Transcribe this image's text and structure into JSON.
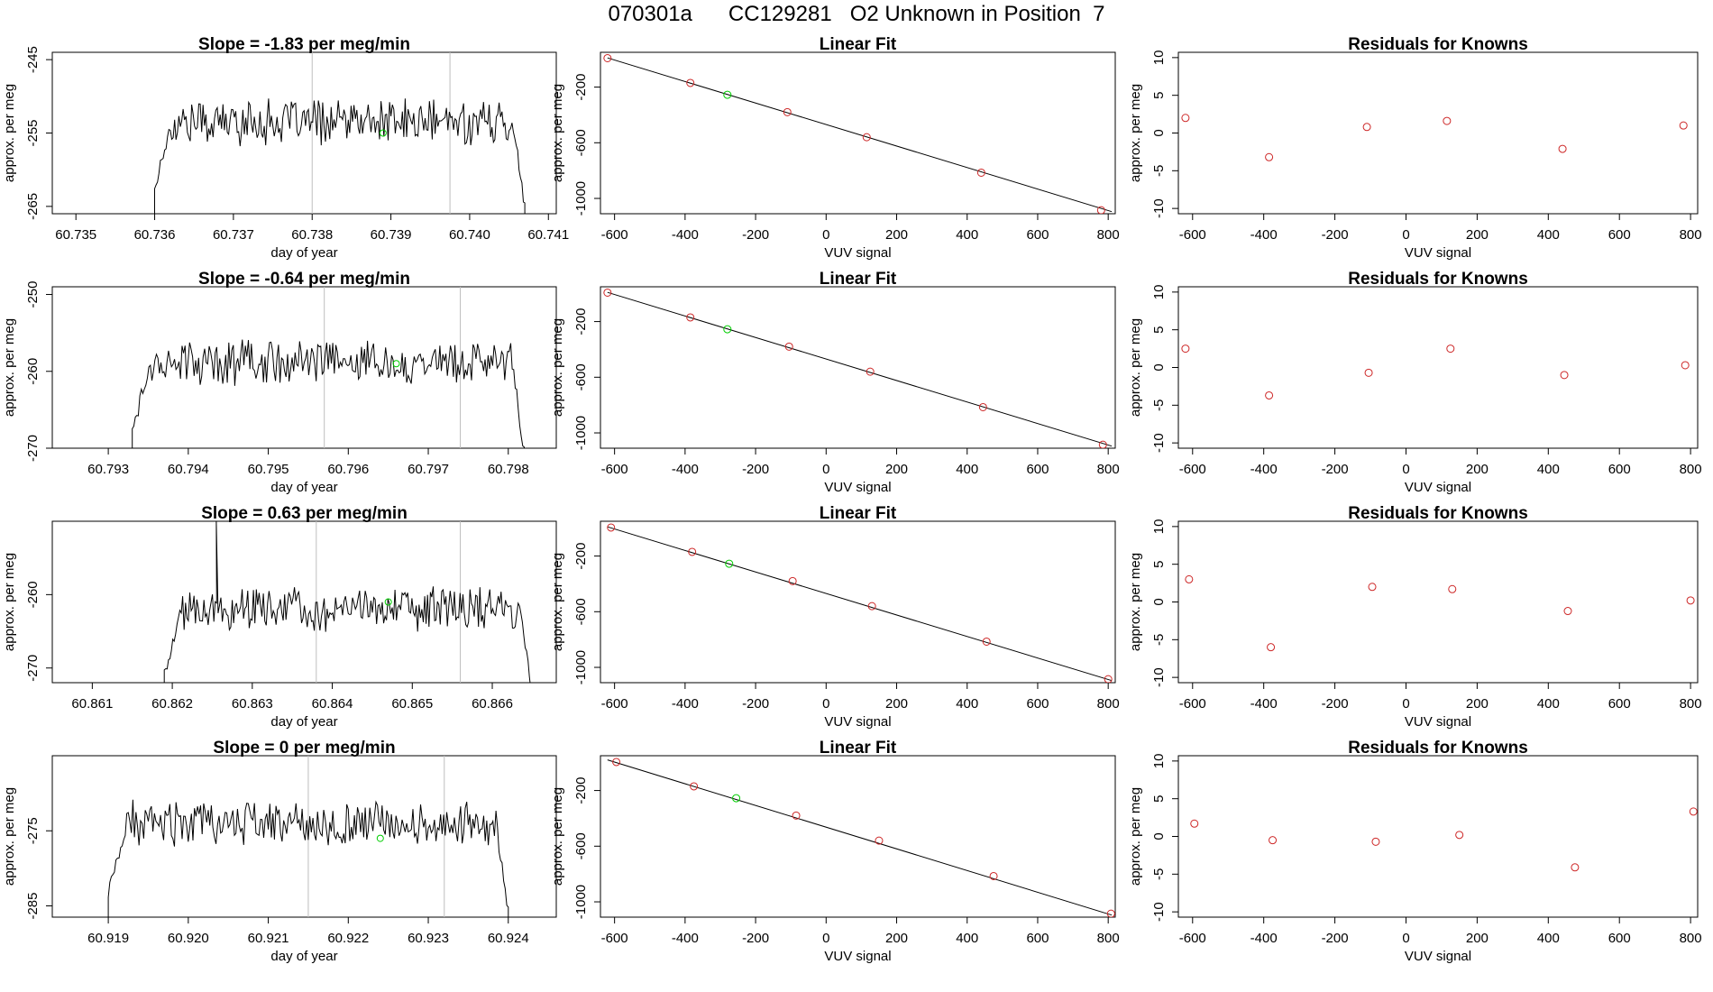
{
  "figure": {
    "run_id": "070301a",
    "cylinder": "CC129281",
    "description": "O2 Unknown in Position  7"
  },
  "colors": {
    "trace": "#000000",
    "known_point": "#cd2626",
    "unknown_point": "#00cd00",
    "marker_line": "#bebebe",
    "axis": "#000000"
  },
  "chart_data": [
    {
      "row": 1,
      "timeseries": {
        "type": "line",
        "title": "Slope =  -1.83  per meg/min",
        "xlabel": "day of year",
        "ylabel": "approx. per meg",
        "xlim": [
          60.7347,
          60.7411
        ],
        "ylim": [
          -266,
          -244
        ],
        "xticks": [
          "60.735",
          "60.736",
          "60.737",
          "60.738",
          "60.739",
          "60.740",
          "60.741"
        ],
        "xtick_values": [
          60.735,
          60.736,
          60.737,
          60.738,
          60.739,
          60.74,
          60.741
        ],
        "yticks": [
          "-245",
          "-255",
          "-265"
        ],
        "ytick_values": [
          -245,
          -255,
          -265
        ],
        "vlines": [
          60.738,
          60.73975
        ],
        "x_start": 60.736,
        "x_end": 60.7407,
        "level": -253.5,
        "amplitude": 2.5,
        "unknown_mean": {
          "x": 60.7389,
          "y": -255
        }
      },
      "fit": {
        "type": "scatter",
        "title": "Linear Fit",
        "xlabel": "VUV signal",
        "ylabel": "approx. per meg",
        "xlim": [
          -640,
          820
        ],
        "ylim": [
          -1110,
          50
        ],
        "xticks": [
          "-600",
          "-400",
          "-200",
          "0",
          "200",
          "400",
          "600",
          "800"
        ],
        "xtick_values": [
          -600,
          -400,
          -200,
          0,
          200,
          400,
          600,
          800
        ],
        "yticks": [
          "-200",
          "-600",
          "-1000"
        ],
        "ytick_values": [
          -200,
          -600,
          -1000
        ],
        "line": {
          "x": [
            -620,
            810
          ],
          "y": [
            10,
            -1095
          ]
        },
        "knowns": {
          "x": [
            -620,
            -385,
            -110,
            115,
            440,
            780
          ],
          "y": [
            8,
            -170,
            -380,
            -560,
            -815,
            -1085
          ]
        },
        "unknown": {
          "x": -280,
          "y": -255
        }
      },
      "residuals": {
        "type": "scatter",
        "title": "Residuals for Knowns",
        "xlabel": "VUV signal",
        "ylabel": "approx. per meg",
        "xlim": [
          -640,
          820
        ],
        "ylim": [
          -10.7,
          10.7
        ],
        "xticks": [
          "-600",
          "-400",
          "-200",
          "0",
          "200",
          "400",
          "600",
          "800"
        ],
        "xtick_values": [
          -600,
          -400,
          -200,
          0,
          200,
          400,
          600,
          800
        ],
        "yticks": [
          "10",
          "5",
          "0",
          "-5",
          "-10"
        ],
        "ytick_values": [
          10,
          5,
          0,
          -5,
          -10
        ],
        "points": {
          "x": [
            -620,
            -385,
            -110,
            115,
            440,
            780
          ],
          "y": [
            2.0,
            -3.2,
            0.8,
            1.6,
            -2.1,
            1.0
          ]
        }
      }
    },
    {
      "row": 2,
      "timeseries": {
        "type": "line",
        "title": "Slope =  -0.64  per meg/min",
        "xlabel": "day of year",
        "ylabel": "approx. per meg",
        "xlim": [
          60.7923,
          60.7986
        ],
        "ylim": [
          -270,
          -249
        ],
        "xticks": [
          "60.793",
          "60.794",
          "60.795",
          "60.796",
          "60.797",
          "60.798"
        ],
        "xtick_values": [
          60.793,
          60.794,
          60.795,
          60.796,
          60.797,
          60.798
        ],
        "yticks": [
          "-250",
          "-260",
          "-270"
        ],
        "ytick_values": [
          -250,
          -260,
          -270
        ],
        "vlines": [
          60.7957,
          60.7974
        ],
        "x_start": 60.7933,
        "x_end": 60.7982,
        "level": -258.8,
        "amplitude": 2.3,
        "unknown_mean": {
          "x": 60.7966,
          "y": -259
        }
      },
      "fit": {
        "type": "scatter",
        "title": "Linear Fit",
        "xlabel": "VUV signal",
        "ylabel": "approx. per meg",
        "xlim": [
          -640,
          820
        ],
        "ylim": [
          -1110,
          50
        ],
        "xticks": [
          "-600",
          "-400",
          "-200",
          "0",
          "200",
          "400",
          "600",
          "800"
        ],
        "xtick_values": [
          -600,
          -400,
          -200,
          0,
          200,
          400,
          600,
          800
        ],
        "yticks": [
          "-200",
          "-600",
          "-1000"
        ],
        "ytick_values": [
          -200,
          -600,
          -1000
        ],
        "line": {
          "x": [
            -620,
            810
          ],
          "y": [
            10,
            -1095
          ]
        },
        "knowns": {
          "x": [
            -620,
            -385,
            -105,
            125,
            445,
            785
          ],
          "y": [
            8,
            -170,
            -380,
            -560,
            -815,
            -1085
          ]
        },
        "unknown": {
          "x": -280,
          "y": -255
        }
      },
      "residuals": {
        "type": "scatter",
        "title": "Residuals for Knowns",
        "xlabel": "VUV signal",
        "ylabel": "approx. per meg",
        "xlim": [
          -640,
          820
        ],
        "ylim": [
          -10.7,
          10.7
        ],
        "xticks": [
          "-600",
          "-400",
          "-200",
          "0",
          "200",
          "400",
          "600",
          "800"
        ],
        "xtick_values": [
          -600,
          -400,
          -200,
          0,
          200,
          400,
          600,
          800
        ],
        "yticks": [
          "10",
          "5",
          "0",
          "-5",
          "-10"
        ],
        "ytick_values": [
          10,
          5,
          0,
          -5,
          -10
        ],
        "points": {
          "x": [
            -620,
            -385,
            -105,
            125,
            445,
            785
          ],
          "y": [
            2.5,
            -3.7,
            -0.7,
            2.5,
            -1.0,
            0.3
          ]
        }
      }
    },
    {
      "row": 3,
      "timeseries": {
        "type": "line",
        "title": "Slope =  0.63  per meg/min",
        "xlabel": "day of year",
        "ylabel": "approx. per meg",
        "xlim": [
          60.8605,
          60.8668
        ],
        "ylim": [
          -272,
          -250
        ],
        "xticks": [
          "60.861",
          "60.862",
          "60.863",
          "60.864",
          "60.865",
          "60.866"
        ],
        "xtick_values": [
          60.861,
          60.862,
          60.863,
          60.864,
          60.865,
          60.866
        ],
        "yticks": [
          "-260",
          "-270"
        ],
        "ytick_values": [
          -260,
          -270
        ],
        "vlines": [
          60.8638,
          60.8656
        ],
        "x_start": 60.8619,
        "x_end": 60.8665,
        "level": -262.0,
        "amplitude": 2.3,
        "spike": {
          "x": 60.86255,
          "y": -250
        },
        "unknown_mean": {
          "x": 60.8647,
          "y": -261
        }
      },
      "fit": {
        "type": "scatter",
        "title": "Linear Fit",
        "xlabel": "VUV signal",
        "ylabel": "approx. per meg",
        "xlim": [
          -640,
          820
        ],
        "ylim": [
          -1110,
          50
        ],
        "xticks": [
          "-600",
          "-400",
          "-200",
          "0",
          "200",
          "400",
          "600",
          "800"
        ],
        "xtick_values": [
          -600,
          -400,
          -200,
          0,
          200,
          400,
          600,
          800
        ],
        "yticks": [
          "-200",
          "-600",
          "-1000"
        ],
        "ytick_values": [
          -200,
          -600,
          -1000
        ],
        "line": {
          "x": [
            -620,
            810
          ],
          "y": [
            10,
            -1095
          ]
        },
        "knowns": {
          "x": [
            -610,
            -380,
            -95,
            130,
            455,
            800
          ],
          "y": [
            5,
            -170,
            -380,
            -560,
            -815,
            -1085
          ]
        },
        "unknown": {
          "x": -275,
          "y": -255
        }
      },
      "residuals": {
        "type": "scatter",
        "title": "Residuals for Knowns",
        "xlabel": "VUV signal",
        "ylabel": "approx. per meg",
        "xlim": [
          -640,
          820
        ],
        "ylim": [
          -10.7,
          10.7
        ],
        "xticks": [
          "-600",
          "-400",
          "-200",
          "0",
          "200",
          "400",
          "600",
          "800"
        ],
        "xtick_values": [
          -600,
          -400,
          -200,
          0,
          200,
          400,
          600,
          800
        ],
        "yticks": [
          "10",
          "5",
          "0",
          "-5",
          "-10"
        ],
        "ytick_values": [
          10,
          5,
          0,
          -5,
          -10
        ],
        "points": {
          "x": [
            -610,
            -380,
            -95,
            130,
            455,
            800
          ],
          "y": [
            3.0,
            -6.0,
            2.0,
            1.7,
            -1.2,
            0.2
          ]
        }
      }
    },
    {
      "row": 4,
      "timeseries": {
        "type": "line",
        "title": "Slope =  0  per meg/min",
        "xlabel": "day of year",
        "ylabel": "approx. per meg",
        "xlim": [
          60.9183,
          60.9246
        ],
        "ylim": [
          -286.5,
          -265
        ],
        "xticks": [
          "60.919",
          "60.920",
          "60.921",
          "60.922",
          "60.923",
          "60.924"
        ],
        "xtick_values": [
          60.919,
          60.92,
          60.921,
          60.922,
          60.923,
          60.924
        ],
        "yticks": [
          "-275",
          "-285"
        ],
        "ytick_values": [
          -275,
          -285
        ],
        "vlines": [
          60.9215,
          60.9232
        ],
        "x_start": 60.919,
        "x_end": 60.924,
        "level": -274.0,
        "amplitude": 2.4,
        "unknown_mean": {
          "x": 60.9224,
          "y": -276
        }
      },
      "fit": {
        "type": "scatter",
        "title": "Linear Fit",
        "xlabel": "VUV signal",
        "ylabel": "approx. per meg",
        "xlim": [
          -640,
          820
        ],
        "ylim": [
          -1110,
          50
        ],
        "xticks": [
          "-600",
          "-400",
          "-200",
          "0",
          "200",
          "400",
          "600",
          "800"
        ],
        "xtick_values": [
          -600,
          -400,
          -200,
          0,
          200,
          400,
          600,
          800
        ],
        "yticks": [
          "-200",
          "-600",
          "-1000"
        ],
        "ytick_values": [
          -200,
          -600,
          -1000
        ],
        "line": {
          "x": [
            -620,
            810
          ],
          "y": [
            20,
            -1095
          ]
        },
        "knowns": {
          "x": [
            -595,
            -375,
            -85,
            150,
            475,
            808
          ],
          "y": [
            5,
            -170,
            -380,
            -560,
            -815,
            -1085
          ]
        },
        "unknown": {
          "x": -255,
          "y": -255
        }
      },
      "residuals": {
        "type": "scatter",
        "title": "Residuals for Knowns",
        "xlabel": "VUV signal",
        "ylabel": "approx. per meg",
        "xlim": [
          -640,
          820
        ],
        "ylim": [
          -10.7,
          10.7
        ],
        "xticks": [
          "-600",
          "-400",
          "-200",
          "0",
          "200",
          "400",
          "600",
          "800"
        ],
        "xtick_values": [
          -600,
          -400,
          -200,
          0,
          200,
          400,
          600,
          800
        ],
        "yticks": [
          "10",
          "5",
          "0",
          "-5",
          "-10"
        ],
        "ytick_values": [
          10,
          5,
          0,
          -5,
          -10
        ],
        "points": {
          "x": [
            -595,
            -375,
            -85,
            150,
            475,
            808
          ],
          "y": [
            1.7,
            -0.5,
            -0.7,
            0.2,
            -4.1,
            3.3
          ]
        }
      }
    }
  ]
}
